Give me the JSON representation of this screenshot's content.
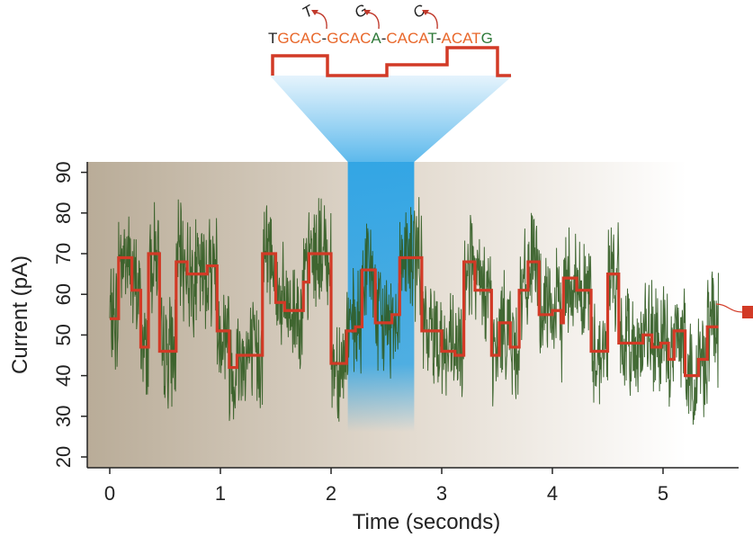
{
  "chart_data": {
    "type": "line",
    "title": "",
    "xlabel": "Time (seconds)",
    "ylabel": "Current (pA)",
    "xlim": [
      -0.25,
      5.7
    ],
    "ylim": [
      17,
      93
    ],
    "xticks": [
      0,
      1,
      2,
      3,
      4,
      5
    ],
    "yticks": [
      20,
      30,
      40,
      50,
      60,
      70,
      80,
      90
    ],
    "grid": false,
    "colors": {
      "raw_trace": "#2f5a20",
      "levels": "#d23a26",
      "highlight": "#2aa3e6",
      "background_start": "#b9ac98",
      "background_end": "#ffffff"
    },
    "highlight_window": [
      2.2,
      2.8
    ],
    "series": [
      {
        "style": "step",
        "points": [
          [
            0.0,
            54
          ],
          [
            0.08,
            69
          ],
          [
            0.2,
            61
          ],
          [
            0.28,
            47
          ],
          [
            0.35,
            70
          ],
          [
            0.45,
            46
          ],
          [
            0.6,
            68
          ],
          [
            0.7,
            65
          ],
          [
            0.88,
            67
          ],
          [
            0.97,
            51
          ],
          [
            1.08,
            42
          ],
          [
            1.15,
            45
          ],
          [
            1.38,
            70
          ],
          [
            1.5,
            58
          ],
          [
            1.58,
            56
          ],
          [
            1.75,
            63
          ],
          [
            1.8,
            70
          ],
          [
            2.0,
            43
          ],
          [
            2.14,
            51
          ],
          [
            2.22,
            52
          ],
          [
            2.28,
            66
          ],
          [
            2.4,
            53
          ],
          [
            2.55,
            55
          ],
          [
            2.62,
            69
          ],
          [
            2.82,
            51
          ],
          [
            3.0,
            46
          ],
          [
            3.12,
            45
          ],
          [
            3.2,
            68
          ],
          [
            3.3,
            61
          ],
          [
            3.45,
            45
          ],
          [
            3.52,
            53
          ],
          [
            3.62,
            47
          ],
          [
            3.7,
            61
          ],
          [
            3.78,
            68
          ],
          [
            3.88,
            55
          ],
          [
            4.0,
            56
          ],
          [
            4.08,
            53
          ],
          [
            4.1,
            64
          ],
          [
            4.22,
            61
          ],
          [
            4.35,
            46
          ],
          [
            4.5,
            65
          ],
          [
            4.6,
            48
          ],
          [
            4.82,
            50
          ],
          [
            4.9,
            47
          ],
          [
            4.98,
            48
          ],
          [
            5.05,
            44
          ],
          [
            5.1,
            51
          ],
          [
            5.2,
            40
          ],
          [
            5.32,
            44
          ],
          [
            5.4,
            52
          ],
          [
            5.5,
            52
          ]
        ]
      }
    ],
    "sequence": [
      {
        "t": "T",
        "c": "#222222"
      },
      {
        "t": "G",
        "c": "#e8672a"
      },
      {
        "t": "C",
        "c": "#e8672a"
      },
      {
        "t": "A",
        "c": "#e8672a"
      },
      {
        "t": "C",
        "c": "#e8672a"
      },
      {
        "t": "-",
        "c": "#222222"
      },
      {
        "t": "G",
        "c": "#e8672a"
      },
      {
        "t": "C",
        "c": "#e8672a"
      },
      {
        "t": "A",
        "c": "#e8672a"
      },
      {
        "t": "C",
        "c": "#e8672a"
      },
      {
        "t": "A",
        "c": "#2f7a3a"
      },
      {
        "t": "-",
        "c": "#222222"
      },
      {
        "t": "C",
        "c": "#e8672a"
      },
      {
        "t": "A",
        "c": "#e8672a"
      },
      {
        "t": "C",
        "c": "#e8672a"
      },
      {
        "t": "A",
        "c": "#e8672a"
      },
      {
        "t": "T",
        "c": "#2f7a3a"
      },
      {
        "t": "-",
        "c": "#222222"
      },
      {
        "t": "A",
        "c": "#e8672a"
      },
      {
        "t": "C",
        "c": "#e8672a"
      },
      {
        "t": "A",
        "c": "#e8672a"
      },
      {
        "t": "T",
        "c": "#e8672a"
      },
      {
        "t": "G",
        "c": "#2f7a3a"
      }
    ],
    "annotations": [
      "T",
      "G",
      "C"
    ]
  }
}
